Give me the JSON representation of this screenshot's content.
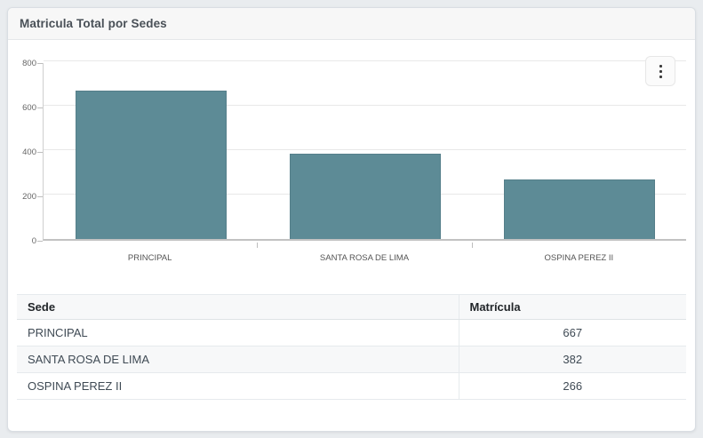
{
  "card": {
    "title": "Matricula Total por Sedes"
  },
  "chart_data": {
    "type": "bar",
    "title": "Matricula Total por Sedes",
    "categories": [
      "PRINCIPAL",
      "SANTA ROSA DE LIMA",
      "OSPINA PEREZ II"
    ],
    "values": [
      667,
      382,
      266
    ],
    "xlabel": "",
    "ylabel": "",
    "ylim": [
      0,
      800
    ],
    "yticks": [
      0,
      200,
      400,
      600,
      800
    ],
    "grid": true,
    "legend": "none",
    "bar_color": "#5d8b96"
  },
  "menu": {
    "kebab_icon": "kebab-menu"
  },
  "table": {
    "headers": [
      "Sede",
      "Matrícula"
    ],
    "rows": [
      {
        "sede": "PRINCIPAL",
        "matricula": "667"
      },
      {
        "sede": "SANTA ROSA DE LIMA",
        "matricula": "382"
      },
      {
        "sede": "OSPINA PEREZ II",
        "matricula": "266"
      }
    ]
  },
  "colors": {
    "page_bg": "#e9ecef",
    "card_bg": "#ffffff",
    "header_bg": "#f7f7f7",
    "bar": "#5d8b96",
    "stripe": "#f7f8f9"
  }
}
